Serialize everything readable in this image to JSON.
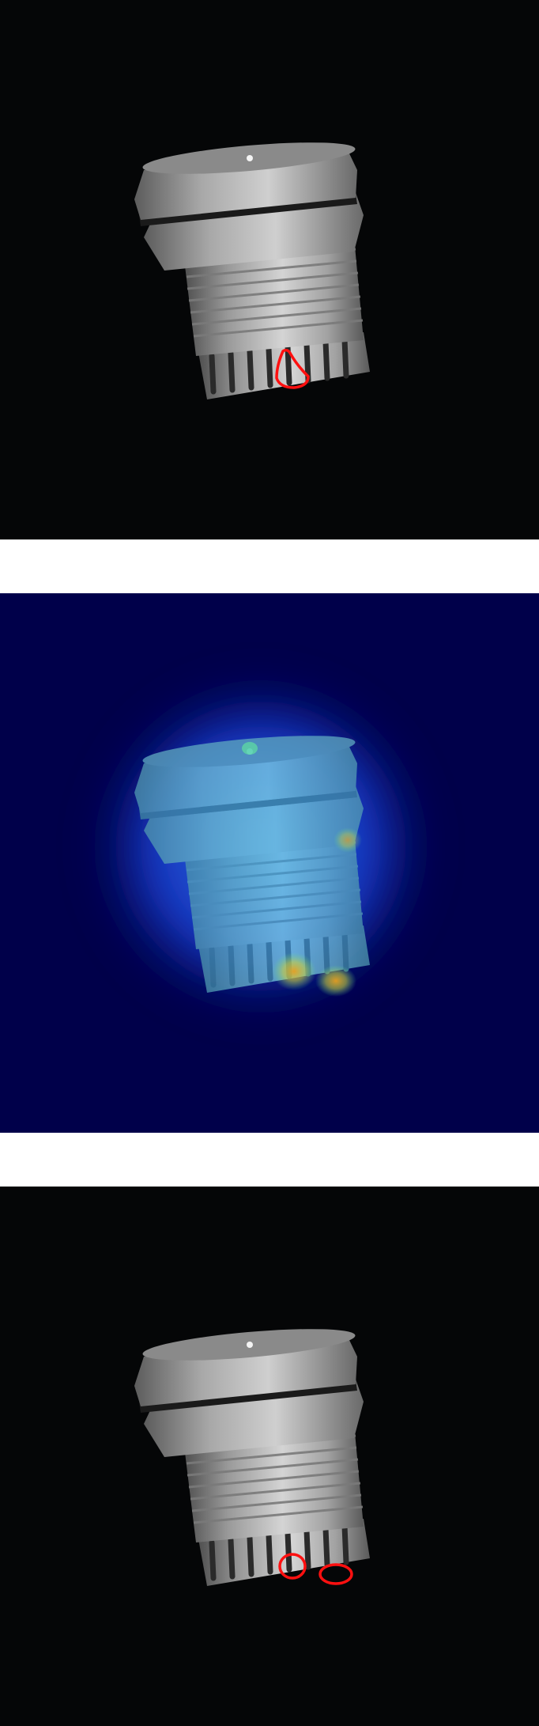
{
  "panels": [
    {
      "kind": "ground-truth-overlay",
      "background": "#050607",
      "annotation_color": "#ff0000",
      "annotations": 1
    },
    {
      "kind": "anomaly-heatmap",
      "background": "#00004a",
      "colormap": [
        "#00004a",
        "#0000c8",
        "#1f6fe0",
        "#3fc0e0",
        "#6fe0a0",
        "#d8d040",
        "#e08a20"
      ]
    },
    {
      "kind": "prediction-overlay",
      "background": "#050607",
      "annotation_color": "#ff0000",
      "annotations": 2
    }
  ],
  "subject": {
    "icon": "threaded-plastic-fitting",
    "body_color": "#a8a8a8",
    "highlight_color": "#d8d8d8",
    "shadow_color": "#5a5a5a"
  }
}
